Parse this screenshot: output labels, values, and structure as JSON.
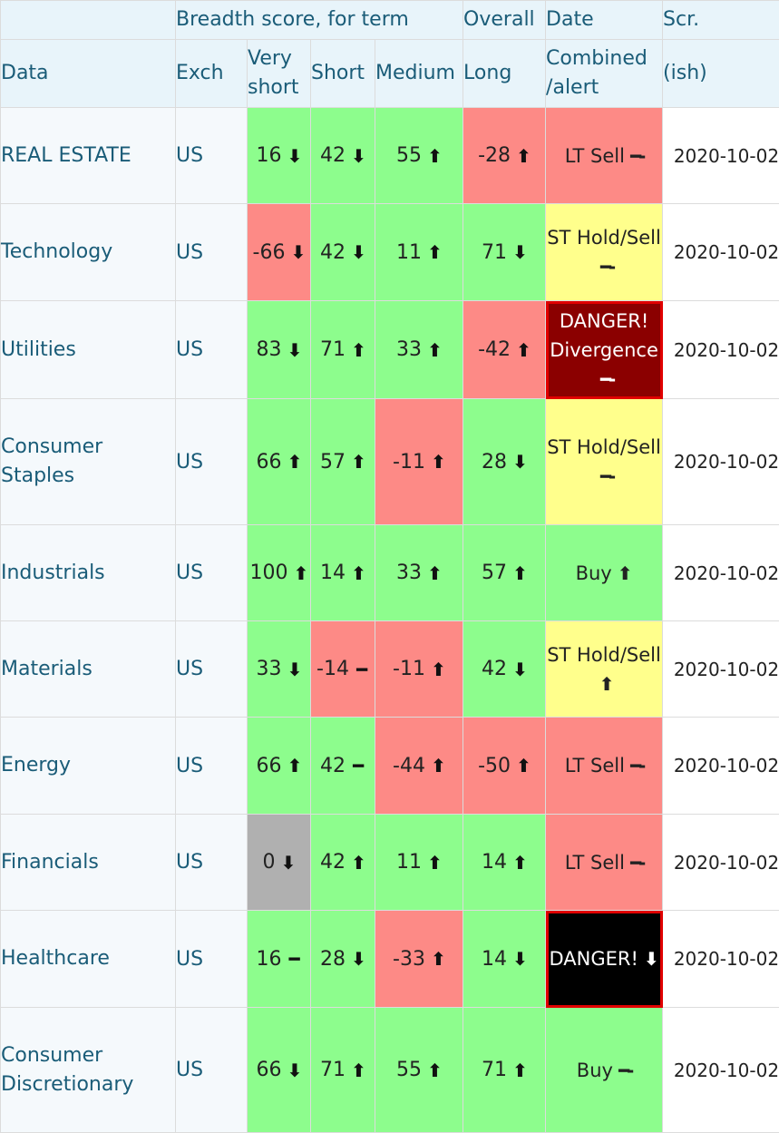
{
  "header": {
    "breadth_label": "Breadth score, for term",
    "overall_label": "Overall",
    "date_label": "Date",
    "scr_label": "Scr.",
    "col_data": "Data",
    "col_exch": "Exch",
    "col_very_short": "Very short",
    "col_short": "Short",
    "col_medium": "Medium",
    "col_long": "Long",
    "col_combined": "Combined /alert",
    "col_scr": "(ish)"
  },
  "colors": {
    "green": "#8dfd8d",
    "red": "#fd8a86",
    "yellow": "#ffff8c",
    "gray": "#b0b0b0",
    "danger_dark_red": "#8b0000",
    "danger_black": "#000000"
  },
  "rows": [
    {
      "name": "REAL ESTATE",
      "exch": "US",
      "vs": {
        "v": "16",
        "a": "down",
        "c": "g"
      },
      "s": {
        "v": "42",
        "a": "down",
        "c": "g"
      },
      "m": {
        "v": "55",
        "a": "up",
        "c": "g"
      },
      "l": {
        "v": "-28",
        "a": "up",
        "c": "r"
      },
      "comb": {
        "text": "LT Sell",
        "a": "flat",
        "c": "r"
      },
      "date": "2020-10-02"
    },
    {
      "name": "Technology",
      "exch": "US",
      "vs": {
        "v": "-66",
        "a": "down",
        "c": "r"
      },
      "s": {
        "v": "42",
        "a": "down",
        "c": "g"
      },
      "m": {
        "v": "11",
        "a": "up",
        "c": "g"
      },
      "l": {
        "v": "71",
        "a": "down",
        "c": "g"
      },
      "comb": {
        "text": "ST Hold/Sell",
        "a": "flat",
        "c": "y"
      },
      "date": "2020-10-02"
    },
    {
      "name": "Utilities",
      "exch": "US",
      "vs": {
        "v": "83",
        "a": "down",
        "c": "g"
      },
      "s": {
        "v": "71",
        "a": "up",
        "c": "g"
      },
      "m": {
        "v": "33",
        "a": "up",
        "c": "g"
      },
      "l": {
        "v": "-42",
        "a": "up",
        "c": "r"
      },
      "comb": {
        "text": "DANGER! Divergence",
        "a": "flat",
        "c": "danger-red"
      },
      "date": "2020-10-02"
    },
    {
      "name": "Consumer Staples",
      "exch": "US",
      "vs": {
        "v": "66",
        "a": "up",
        "c": "g"
      },
      "s": {
        "v": "57",
        "a": "up",
        "c": "g"
      },
      "m": {
        "v": "-11",
        "a": "up",
        "c": "r"
      },
      "l": {
        "v": "28",
        "a": "down",
        "c": "g"
      },
      "comb": {
        "text": "ST Hold/Sell",
        "a": "flat",
        "c": "y"
      },
      "date": "2020-10-02"
    },
    {
      "name": "Industrials",
      "exch": "US",
      "vs": {
        "v": "100",
        "a": "up",
        "c": "g"
      },
      "s": {
        "v": "14",
        "a": "up",
        "c": "g"
      },
      "m": {
        "v": "33",
        "a": "up",
        "c": "g"
      },
      "l": {
        "v": "57",
        "a": "up",
        "c": "g"
      },
      "comb": {
        "text": "Buy",
        "a": "up",
        "c": "g"
      },
      "date": "2020-10-02"
    },
    {
      "name": "Materials",
      "exch": "US",
      "vs": {
        "v": "33",
        "a": "down",
        "c": "g"
      },
      "s": {
        "v": "-14",
        "a": "flat",
        "c": "r"
      },
      "m": {
        "v": "-11",
        "a": "up",
        "c": "r"
      },
      "l": {
        "v": "42",
        "a": "down",
        "c": "g"
      },
      "comb": {
        "text": "ST Hold/Sell",
        "a": "up",
        "c": "y"
      },
      "date": "2020-10-02"
    },
    {
      "name": "Energy",
      "exch": "US",
      "vs": {
        "v": "66",
        "a": "up",
        "c": "g"
      },
      "s": {
        "v": "42",
        "a": "flat",
        "c": "g"
      },
      "m": {
        "v": "-44",
        "a": "up",
        "c": "r"
      },
      "l": {
        "v": "-50",
        "a": "up",
        "c": "r"
      },
      "comb": {
        "text": "LT Sell",
        "a": "flat",
        "c": "r"
      },
      "date": "2020-10-02"
    },
    {
      "name": "Financials",
      "exch": "US",
      "vs": {
        "v": "0",
        "a": "down",
        "c": "gray"
      },
      "s": {
        "v": "42",
        "a": "up",
        "c": "g"
      },
      "m": {
        "v": "11",
        "a": "up",
        "c": "g"
      },
      "l": {
        "v": "14",
        "a": "up",
        "c": "g"
      },
      "comb": {
        "text": "LT Sell",
        "a": "flat",
        "c": "r"
      },
      "date": "2020-10-02"
    },
    {
      "name": "Healthcare",
      "exch": "US",
      "vs": {
        "v": "16",
        "a": "flat",
        "c": "g"
      },
      "s": {
        "v": "28",
        "a": "down",
        "c": "g"
      },
      "m": {
        "v": "-33",
        "a": "up",
        "c": "r"
      },
      "l": {
        "v": "14",
        "a": "down",
        "c": "g"
      },
      "comb": {
        "text": "DANGER!",
        "a": "down",
        "c": "danger-black"
      },
      "date": "2020-10-02"
    },
    {
      "name": "Consumer Discretionary",
      "exch": "US",
      "vs": {
        "v": "66",
        "a": "down",
        "c": "g"
      },
      "s": {
        "v": "71",
        "a": "up",
        "c": "g"
      },
      "m": {
        "v": "55",
        "a": "up",
        "c": "g"
      },
      "l": {
        "v": "71",
        "a": "up",
        "c": "g"
      },
      "comb": {
        "text": "Buy",
        "a": "flat",
        "c": "g"
      },
      "date": "2020-10-02"
    }
  ]
}
